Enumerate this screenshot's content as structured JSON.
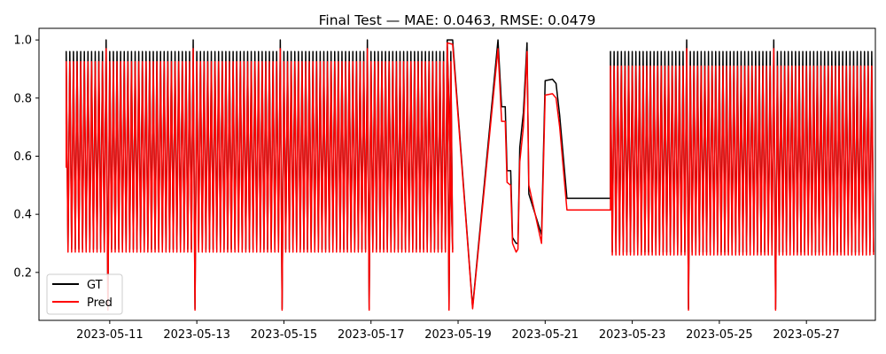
{
  "chart_data": {
    "type": "line",
    "title": "Final Test — MAE: 0.0463, RMSE: 0.0479",
    "xlabel": "",
    "ylabel": "",
    "x_range": [
      "2023-05-09T09:00",
      "2023-05-28T14:00"
    ],
    "ylim": [
      0.035,
      1.04
    ],
    "x_ticks": [
      "2023-05-11",
      "2023-05-13",
      "2023-05-15",
      "2023-05-17",
      "2023-05-19",
      "2023-05-21",
      "2023-05-23",
      "2023-05-25",
      "2023-05-27"
    ],
    "y_ticks": [
      0.2,
      0.4,
      0.6,
      0.8,
      1.0
    ],
    "grid": false,
    "legend": {
      "position": "lower-left",
      "entries": [
        "GT",
        "Pred"
      ]
    },
    "oscillation": {
      "period_hours": 2,
      "note_segments": [
        {
          "start": "2023-05-10T00:00",
          "end": "2023-05-18T20:00",
          "gt_high": 0.96,
          "gt_low": 0.28,
          "pred_high": 0.925,
          "pred_low": 0.27
        },
        {
          "start": "2023-05-22T12:00",
          "end": "2023-05-28T12:00",
          "gt_high": 0.96,
          "gt_low": 0.27,
          "pred_high": 0.91,
          "pred_low": 0.26
        }
      ],
      "spikes": [
        "2023-05-10T22:00",
        "2023-05-12T22:00",
        "2023-05-14T22:00",
        "2023-05-16T22:00",
        "2023-05-18T18:00",
        "2023-05-24T06:00",
        "2023-05-26T06:00"
      ]
    },
    "series": [
      {
        "name": "GT",
        "color": "#000000",
        "points": [
          [
            "2023-05-18T18:00",
            1.0
          ],
          [
            "2023-05-18T21:00",
            1.0
          ],
          [
            "2023-05-19T08:00",
            0.08
          ],
          [
            "2023-05-19T22:00",
            1.0
          ],
          [
            "2023-05-20T00:00",
            0.77
          ],
          [
            "2023-05-20T02:00",
            0.77
          ],
          [
            "2023-05-20T03:00",
            0.55
          ],
          [
            "2023-05-20T05:00",
            0.55
          ],
          [
            "2023-05-20T06:00",
            0.32
          ],
          [
            "2023-05-20T08:00",
            0.3
          ],
          [
            "2023-05-20T09:00",
            0.3
          ],
          [
            "2023-05-20T10:00",
            0.63
          ],
          [
            "2023-05-20T12:00",
            0.75
          ],
          [
            "2023-05-20T14:00",
            0.99
          ],
          [
            "2023-05-20T15:00",
            0.47
          ],
          [
            "2023-05-20T22:00",
            0.33
          ],
          [
            "2023-05-21T00:00",
            0.86
          ],
          [
            "2023-05-21T04:00",
            0.865
          ],
          [
            "2023-05-21T06:00",
            0.85
          ],
          [
            "2023-05-21T08:00",
            0.74
          ],
          [
            "2023-05-21T12:00",
            0.455
          ],
          [
            "2023-05-22T12:00",
            0.455
          ]
        ]
      },
      {
        "name": "Pred",
        "color": "#ff0000",
        "points": [
          [
            "2023-05-18T18:00",
            0.99
          ],
          [
            "2023-05-18T21:00",
            0.985
          ],
          [
            "2023-05-19T08:00",
            0.075
          ],
          [
            "2023-05-19T22:00",
            0.97
          ],
          [
            "2023-05-20T00:00",
            0.72
          ],
          [
            "2023-05-20T02:00",
            0.72
          ],
          [
            "2023-05-20T03:00",
            0.51
          ],
          [
            "2023-05-20T05:00",
            0.5
          ],
          [
            "2023-05-20T06:00",
            0.3
          ],
          [
            "2023-05-20T08:00",
            0.27
          ],
          [
            "2023-05-20T09:00",
            0.28
          ],
          [
            "2023-05-20T10:00",
            0.58
          ],
          [
            "2023-05-20T12:00",
            0.7
          ],
          [
            "2023-05-20T14:00",
            0.96
          ],
          [
            "2023-05-20T15:00",
            0.5
          ],
          [
            "2023-05-20T22:00",
            0.3
          ],
          [
            "2023-05-21T00:00",
            0.81
          ],
          [
            "2023-05-21T04:00",
            0.815
          ],
          [
            "2023-05-21T06:00",
            0.8
          ],
          [
            "2023-05-21T08:00",
            0.7
          ],
          [
            "2023-05-21T12:00",
            0.415
          ],
          [
            "2023-05-22T12:00",
            0.415
          ]
        ]
      }
    ]
  }
}
